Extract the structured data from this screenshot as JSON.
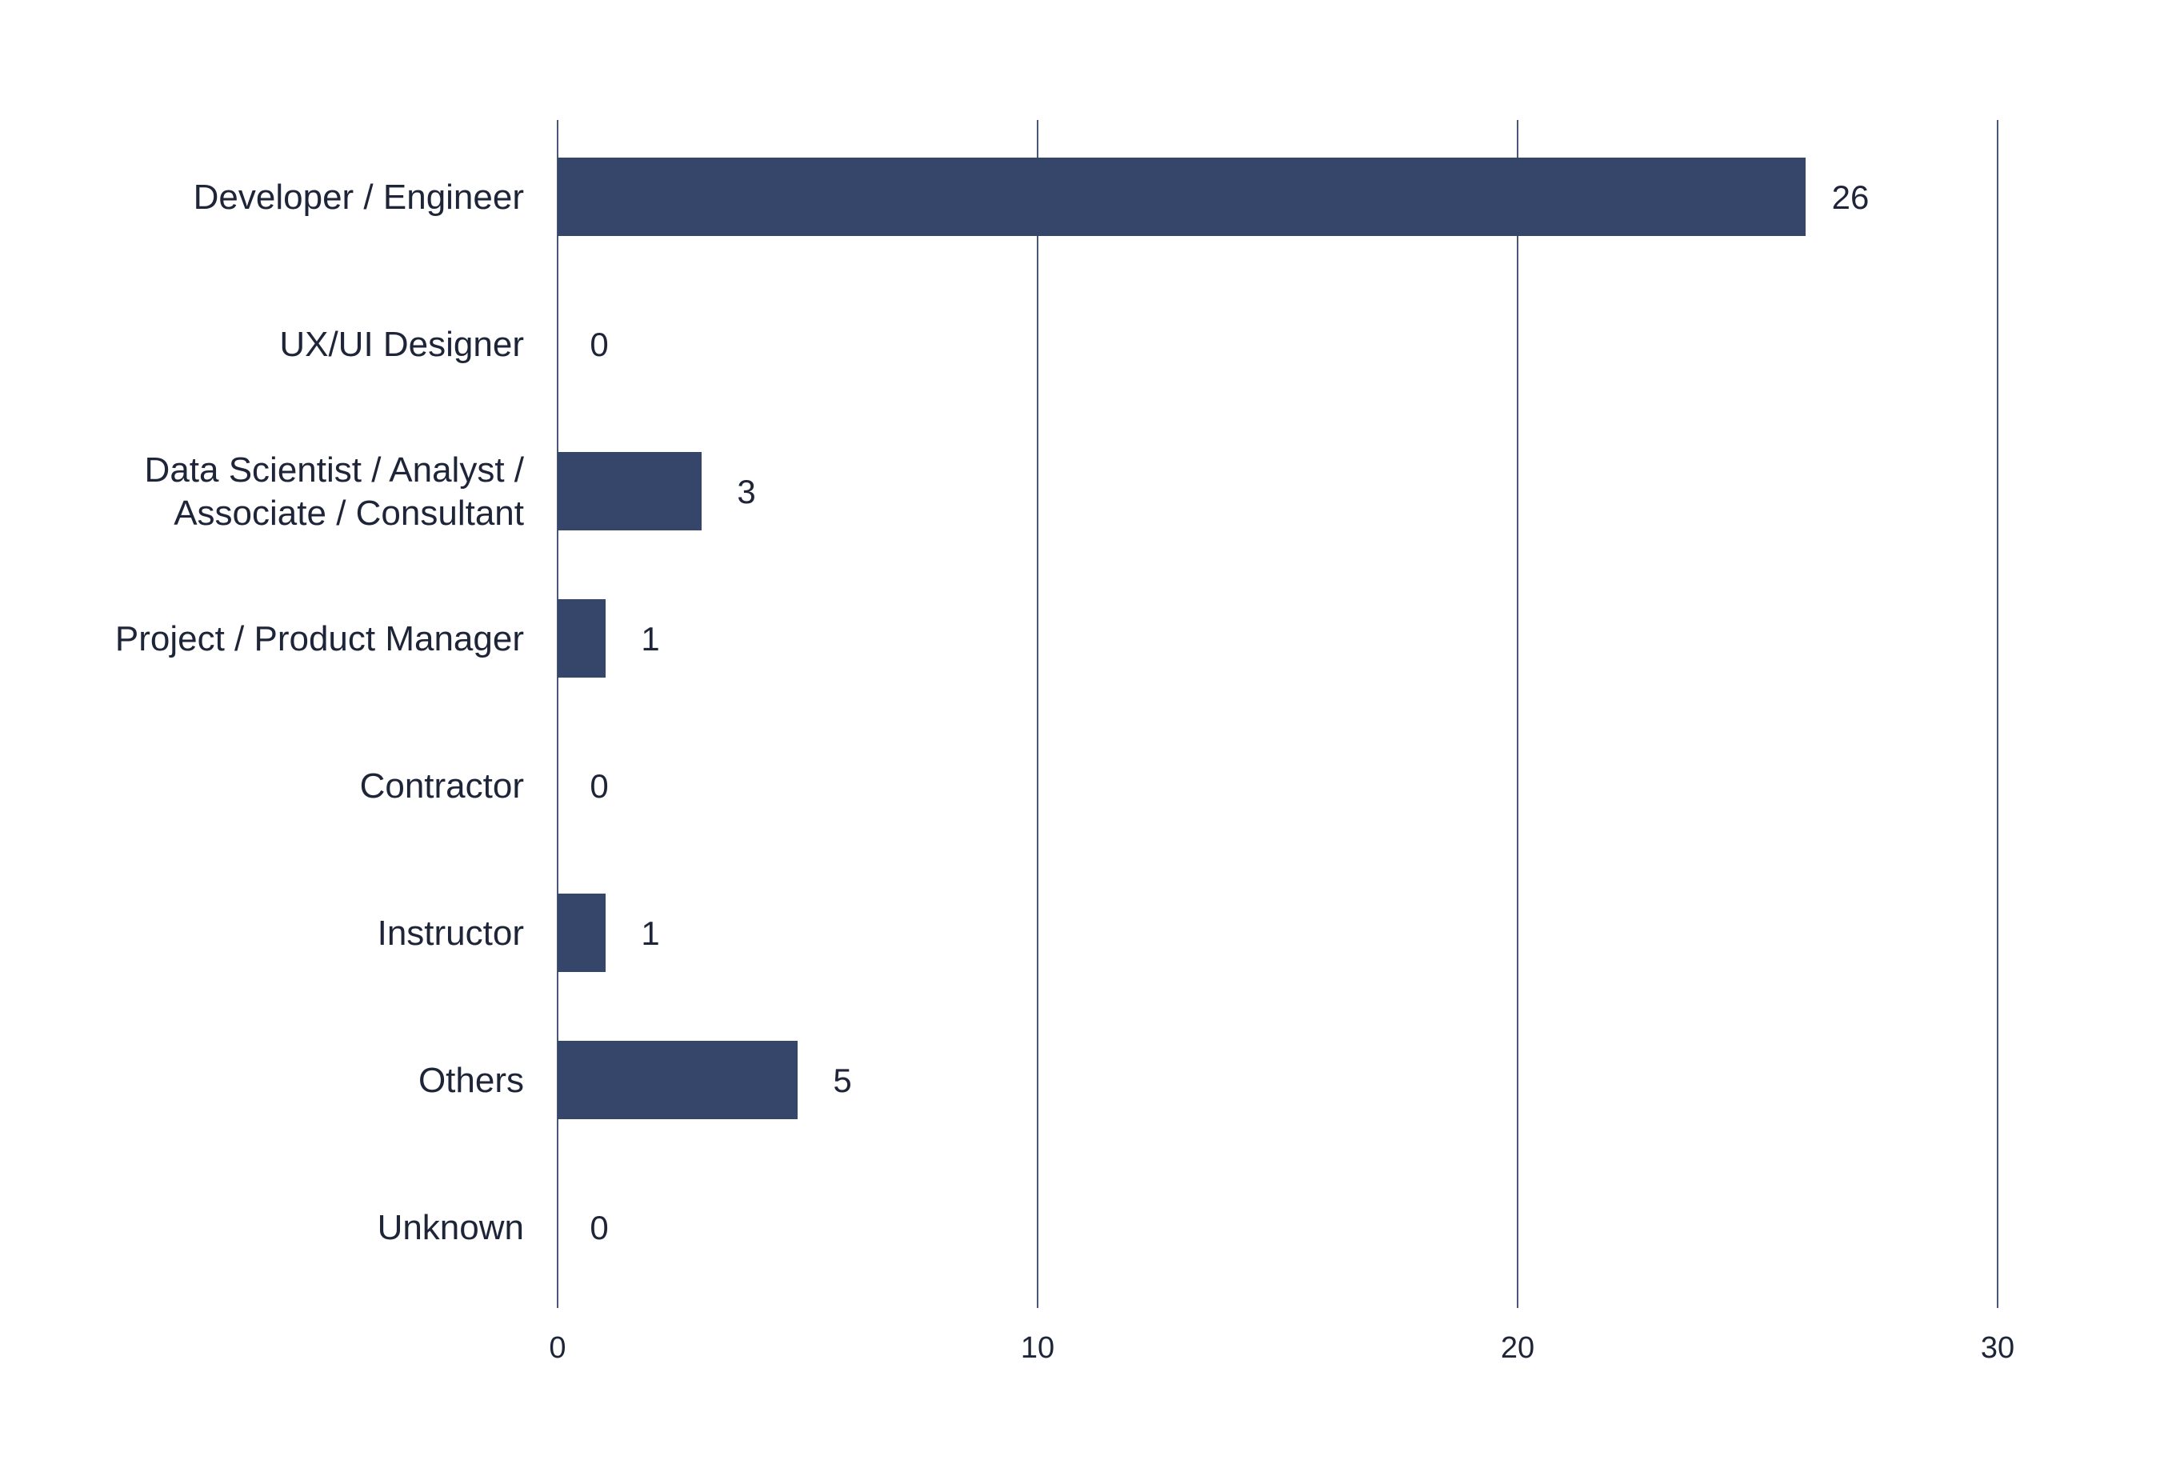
{
  "chart_data": {
    "type": "bar",
    "orientation": "horizontal",
    "title": "",
    "xlabel": "",
    "ylabel": "",
    "categories": [
      [
        "Developer / Engineer"
      ],
      [
        "UX/UI Designer"
      ],
      [
        "Data Scientist / Analyst /",
        "Associate / Consultant"
      ],
      [
        "Project / Product Manager"
      ],
      [
        "Contractor"
      ],
      [
        "Instructor"
      ],
      [
        "Others"
      ],
      [
        "Unknown"
      ]
    ],
    "values": [
      26,
      0,
      3,
      1,
      0,
      1,
      5,
      0
    ],
    "value_labels": [
      "26",
      "0",
      "3",
      "1",
      "0",
      "1",
      "5",
      "0"
    ],
    "xlim": [
      0,
      30
    ],
    "x_ticks": [
      0,
      10,
      20,
      30
    ],
    "x_tick_labels": [
      "0",
      "10",
      "20",
      "30"
    ],
    "grid": "vertical",
    "legend": "none",
    "bar_color": "#35466a",
    "grid_color": "#4a5878",
    "text_color": "#1f2538"
  }
}
